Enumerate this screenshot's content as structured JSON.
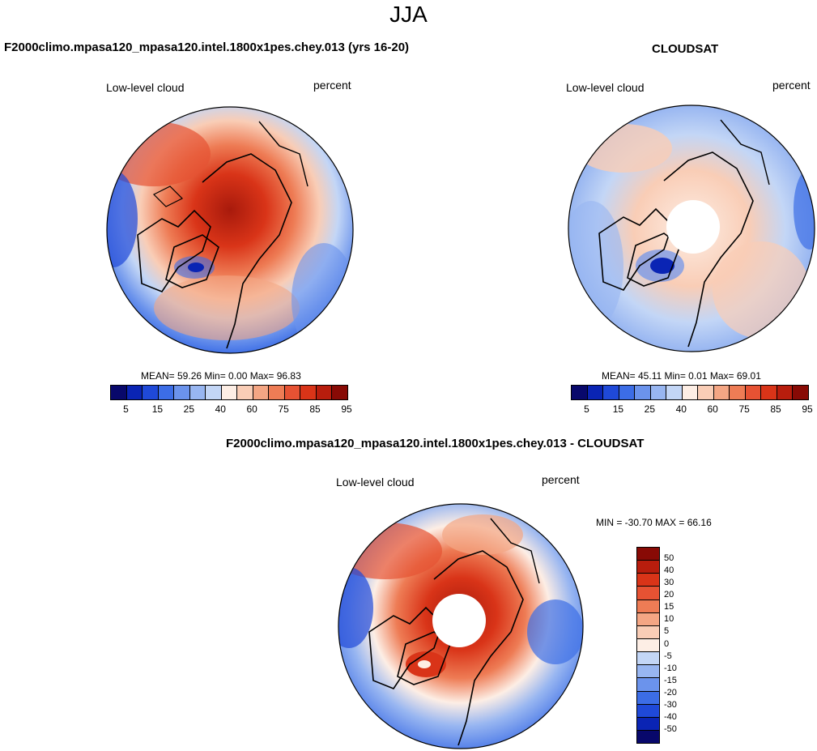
{
  "figure": {
    "season_title": "JJA",
    "colors": {
      "abs_scale": [
        "#08086b",
        "#0a24b4",
        "#1f49d8",
        "#3c6de6",
        "#6b93ec",
        "#98b6f1",
        "#c3d6f6",
        "#fdeee5",
        "#f9cdb6",
        "#f4a684",
        "#ee7c55",
        "#e65233",
        "#d93418",
        "#b81d0d",
        "#880a05"
      ],
      "diff_scale": [
        "#08086b",
        "#0a24b4",
        "#1f49d8",
        "#3c6de6",
        "#6b93ec",
        "#98b6f1",
        "#c3d6f6",
        "#fdeee5",
        "#f9cdb6",
        "#f4a684",
        "#ee7c55",
        "#e65233",
        "#d93418",
        "#b81d0d",
        "#880a05"
      ]
    }
  },
  "panels": [
    {
      "title": "F2000climo.mpasa120_mpasa120.intel.1800x1pes.chey.013 (yrs 16-20)",
      "variable": "Low-level cloud",
      "units": "percent",
      "stats": "MEAN=  59.26  Min=   0.00  Max=  96.83",
      "colorbar_ticks": [
        "5",
        "15",
        "25",
        "40",
        "60",
        "75",
        "85",
        "95"
      ]
    },
    {
      "title": "CLOUDSAT",
      "variable": "Low-level cloud",
      "units": "percent",
      "stats": "MEAN=  45.11  Min=   0.01  Max=  69.01",
      "colorbar_ticks": [
        "5",
        "15",
        "25",
        "40",
        "60",
        "75",
        "85",
        "95"
      ]
    },
    {
      "title": "F2000climo.mpasa120_mpasa120.intel.1800x1pes.chey.013 - CLOUDSAT",
      "variable": "Low-level cloud",
      "units": "percent",
      "stats": "MIN = -30.70 MAX =  66.16",
      "colorbar_ticks": [
        "50",
        "40",
        "30",
        "20",
        "15",
        "10",
        "5",
        "0",
        "-5",
        "-10",
        "-15",
        "-20",
        "-30",
        "-40",
        "-50"
      ]
    }
  ]
}
